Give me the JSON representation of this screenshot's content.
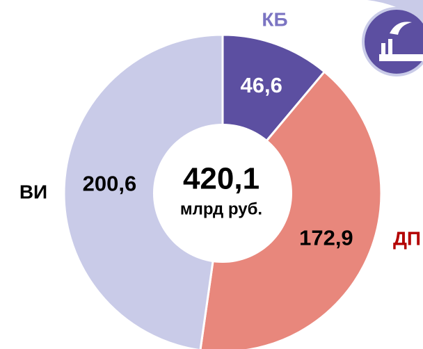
{
  "chart_data": {
    "type": "donut",
    "categories": [
      "КБ",
      "ДП",
      "ВИ"
    ],
    "values": [
      46.6,
      172.9,
      200.6
    ],
    "value_labels": [
      "46,6",
      "172,9",
      "200,6"
    ],
    "colors": [
      "#5c4fa1",
      "#e8877c",
      "#c9cbe8"
    ],
    "label_colors": [
      "#7b74c2",
      "#b30000",
      "#000000"
    ],
    "value_label_colors": [
      "#ffffff",
      "#000000",
      "#000000"
    ],
    "total": {
      "value": 420.1,
      "label": "420,1"
    },
    "total_unit": "млрд руб."
  }
}
